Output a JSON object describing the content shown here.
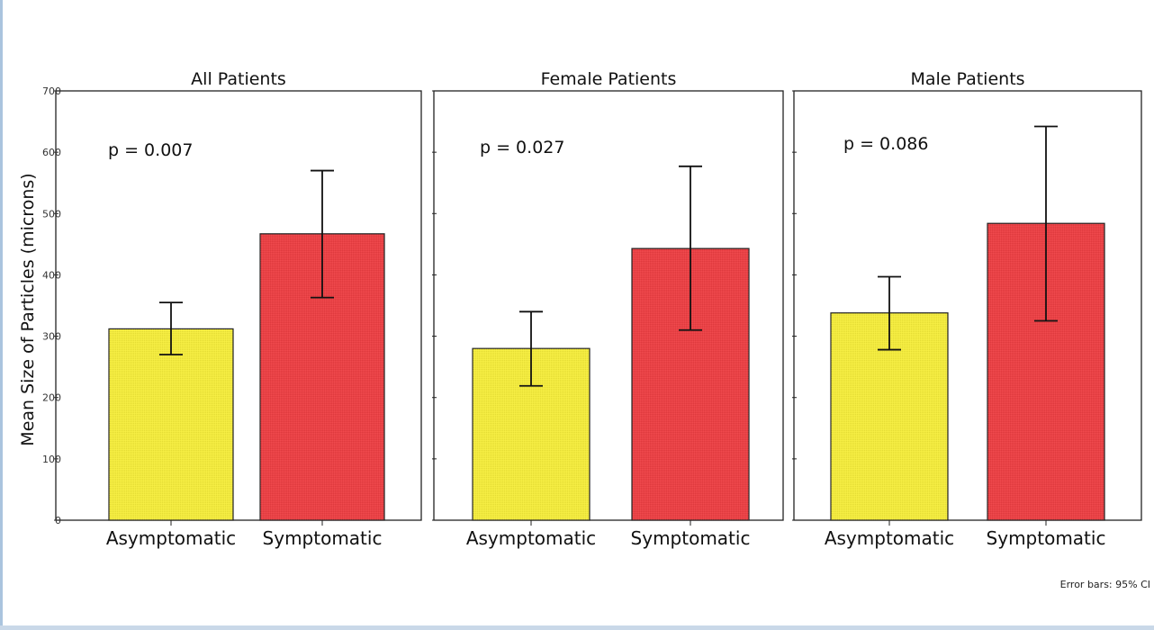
{
  "chart_data": [
    {
      "type": "bar",
      "title": "All Patients",
      "annotation": "p = 0.007",
      "categories": [
        "Asymptomatic",
        "Symptomatic"
      ],
      "values": [
        312,
        467
      ],
      "ci_low": [
        270,
        363
      ],
      "ci_high": [
        355,
        570
      ],
      "colors": [
        "#f4ec3c",
        "#ec4044"
      ],
      "ylabel": "Mean Size of Particles (microns)",
      "ylim": [
        0,
        700
      ],
      "yticks": [
        0,
        100,
        200,
        300,
        400,
        500,
        600,
        700
      ]
    },
    {
      "type": "bar",
      "title": "Female Patients",
      "annotation": "p = 0.027",
      "categories": [
        "Asymptomatic",
        "Symptomatic"
      ],
      "values": [
        280,
        443
      ],
      "ci_low": [
        219,
        310
      ],
      "ci_high": [
        340,
        577
      ],
      "colors": [
        "#f4ec3c",
        "#ec4044"
      ],
      "ylim": [
        0,
        700
      ]
    },
    {
      "type": "bar",
      "title": "Male Patients",
      "annotation": "p = 0.086",
      "categories": [
        "Asymptomatic",
        "Symptomatic"
      ],
      "values": [
        338,
        484
      ],
      "ci_low": [
        278,
        325
      ],
      "ci_high": [
        397,
        642
      ],
      "colors": [
        "#f4ec3c",
        "#ec4044"
      ],
      "ylim": [
        0,
        700
      ]
    }
  ],
  "footnote": "Error bars: 95% CI"
}
